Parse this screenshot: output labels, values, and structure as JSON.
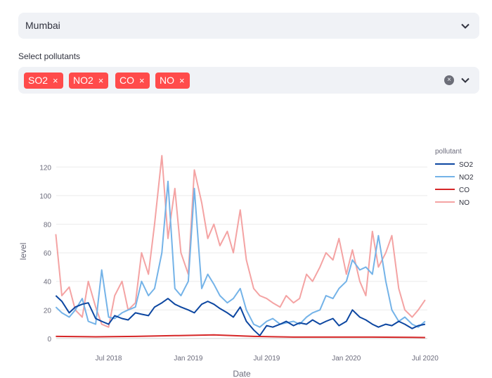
{
  "city_select": {
    "value": "Mumbai"
  },
  "pollutant_select": {
    "label": "Select pollutants",
    "tags": [
      "SO2",
      "NO2",
      "CO",
      "NO"
    ],
    "remove_glyph": "×"
  },
  "chart_data": {
    "type": "line",
    "xlabel": "Date",
    "ylabel": "level",
    "legend_title": "pollutant",
    "legend_position": "right",
    "grid": true,
    "ylim": [
      -3,
      130
    ],
    "xlim": [
      "2018-03-02",
      "2020-07-06"
    ],
    "x_ticks": [
      "Jul 2018",
      "Jan 2019",
      "Jul 2019",
      "Jan 2020",
      "Jul 2020"
    ],
    "y_ticks": [
      0,
      20,
      40,
      60,
      80,
      100,
      120
    ],
    "series": [
      {
        "name": "SO2",
        "color": "#0d47a1",
        "x": [
          "2018-03-01",
          "2018-03-15",
          "2018-04-01",
          "2018-04-15",
          "2018-05-01",
          "2018-05-15",
          "2018-06-01",
          "2018-06-15",
          "2018-07-01",
          "2018-07-15",
          "2018-08-01",
          "2018-08-15",
          "2018-09-01",
          "2018-09-15",
          "2018-10-01",
          "2018-10-15",
          "2018-11-01",
          "2018-11-15",
          "2018-12-01",
          "2018-12-15",
          "2019-01-01",
          "2019-01-15",
          "2019-02-01",
          "2019-02-15",
          "2019-03-01",
          "2019-03-15",
          "2019-04-01",
          "2019-04-15",
          "2019-05-01",
          "2019-05-15",
          "2019-06-01",
          "2019-06-15",
          "2019-07-01",
          "2019-07-15",
          "2019-08-01",
          "2019-08-15",
          "2019-09-01",
          "2019-09-15",
          "2019-10-01",
          "2019-10-15",
          "2019-11-01",
          "2019-11-15",
          "2019-12-01",
          "2019-12-15",
          "2020-01-01",
          "2020-01-15",
          "2020-02-01",
          "2020-02-15",
          "2020-03-01",
          "2020-03-15",
          "2020-04-01",
          "2020-04-15",
          "2020-05-01",
          "2020-05-15",
          "2020-06-01",
          "2020-06-15",
          "2020-07-01"
        ],
        "values": [
          30,
          26,
          18,
          22,
          24,
          25,
          14,
          12,
          10,
          16,
          14,
          13,
          18,
          17,
          16,
          22,
          25,
          28,
          24,
          22,
          20,
          18,
          24,
          26,
          24,
          21,
          18,
          15,
          22,
          12,
          6,
          2,
          9,
          8,
          10,
          12,
          9,
          11,
          10,
          13,
          10,
          12,
          14,
          9,
          12,
          20,
          15,
          13,
          10,
          8,
          10,
          9,
          12,
          10,
          7,
          9,
          10
        ]
      },
      {
        "name": "NO2",
        "color": "#74b3e8",
        "x": [
          "2018-03-01",
          "2018-03-15",
          "2018-04-01",
          "2018-04-15",
          "2018-05-01",
          "2018-05-15",
          "2018-06-01",
          "2018-06-15",
          "2018-07-01",
          "2018-07-15",
          "2018-08-01",
          "2018-08-15",
          "2018-09-01",
          "2018-09-15",
          "2018-10-01",
          "2018-10-15",
          "2018-11-01",
          "2018-11-15",
          "2018-12-01",
          "2018-12-15",
          "2019-01-01",
          "2019-01-15",
          "2019-02-01",
          "2019-02-15",
          "2019-03-01",
          "2019-03-15",
          "2019-04-01",
          "2019-04-15",
          "2019-05-01",
          "2019-05-15",
          "2019-06-01",
          "2019-06-15",
          "2019-07-01",
          "2019-07-15",
          "2019-08-01",
          "2019-08-15",
          "2019-09-01",
          "2019-09-15",
          "2019-10-01",
          "2019-10-15",
          "2019-11-01",
          "2019-11-15",
          "2019-12-01",
          "2019-12-15",
          "2020-01-01",
          "2020-01-15",
          "2020-02-01",
          "2020-02-15",
          "2020-03-01",
          "2020-03-15",
          "2020-04-01",
          "2020-04-15",
          "2020-05-01",
          "2020-05-15",
          "2020-06-01",
          "2020-06-15",
          "2020-07-01"
        ],
        "values": [
          22,
          18,
          15,
          20,
          28,
          12,
          10,
          48,
          15,
          14,
          18,
          20,
          22,
          40,
          30,
          35,
          60,
          110,
          35,
          30,
          40,
          105,
          35,
          45,
          38,
          30,
          25,
          28,
          35,
          20,
          10,
          8,
          12,
          14,
          10,
          11,
          12,
          10,
          15,
          18,
          20,
          30,
          28,
          35,
          40,
          55,
          48,
          50,
          45,
          72,
          40,
          20,
          12,
          15,
          10,
          8,
          12
        ]
      },
      {
        "name": "CO",
        "color": "#d62728",
        "x": [
          "2018-03-01",
          "2018-06-01",
          "2018-09-01",
          "2018-12-01",
          "2019-03-01",
          "2019-06-01",
          "2019-09-01",
          "2019-12-01",
          "2020-03-01",
          "2020-06-01",
          "2020-07-01"
        ],
        "values": [
          1.5,
          1.2,
          1.5,
          2.0,
          2.5,
          1.5,
          1.0,
          1.0,
          1.0,
          0.8,
          0.7
        ]
      },
      {
        "name": "NO",
        "color": "#f4a3a3",
        "x": [
          "2018-03-01",
          "2018-03-15",
          "2018-04-01",
          "2018-04-15",
          "2018-05-01",
          "2018-05-15",
          "2018-06-01",
          "2018-06-15",
          "2018-07-01",
          "2018-07-15",
          "2018-08-01",
          "2018-08-15",
          "2018-09-01",
          "2018-09-15",
          "2018-10-01",
          "2018-10-15",
          "2018-11-01",
          "2018-11-15",
          "2018-12-01",
          "2018-12-15",
          "2019-01-01",
          "2019-01-15",
          "2019-02-01",
          "2019-02-15",
          "2019-03-01",
          "2019-03-15",
          "2019-04-01",
          "2019-04-15",
          "2019-05-01",
          "2019-05-15",
          "2019-06-01",
          "2019-06-15",
          "2019-07-01",
          "2019-07-15",
          "2019-08-01",
          "2019-08-15",
          "2019-09-01",
          "2019-09-15",
          "2019-10-01",
          "2019-10-15",
          "2019-11-01",
          "2019-11-15",
          "2019-12-01",
          "2019-12-15",
          "2020-01-01",
          "2020-01-15",
          "2020-02-01",
          "2020-02-15",
          "2020-03-01",
          "2020-03-15",
          "2020-04-01",
          "2020-04-15",
          "2020-05-01",
          "2020-05-15",
          "2020-06-01",
          "2020-06-15",
          "2020-07-01"
        ],
        "values": [
          73,
          30,
          36,
          20,
          15,
          40,
          22,
          10,
          8,
          30,
          40,
          20,
          25,
          60,
          45,
          80,
          128,
          70,
          105,
          60,
          45,
          118,
          95,
          70,
          80,
          65,
          75,
          60,
          90,
          55,
          35,
          30,
          28,
          25,
          22,
          30,
          25,
          28,
          45,
          40,
          50,
          60,
          55,
          70,
          45,
          62,
          40,
          30,
          75,
          50,
          60,
          72,
          35,
          20,
          15,
          20,
          27
        ]
      }
    ]
  }
}
